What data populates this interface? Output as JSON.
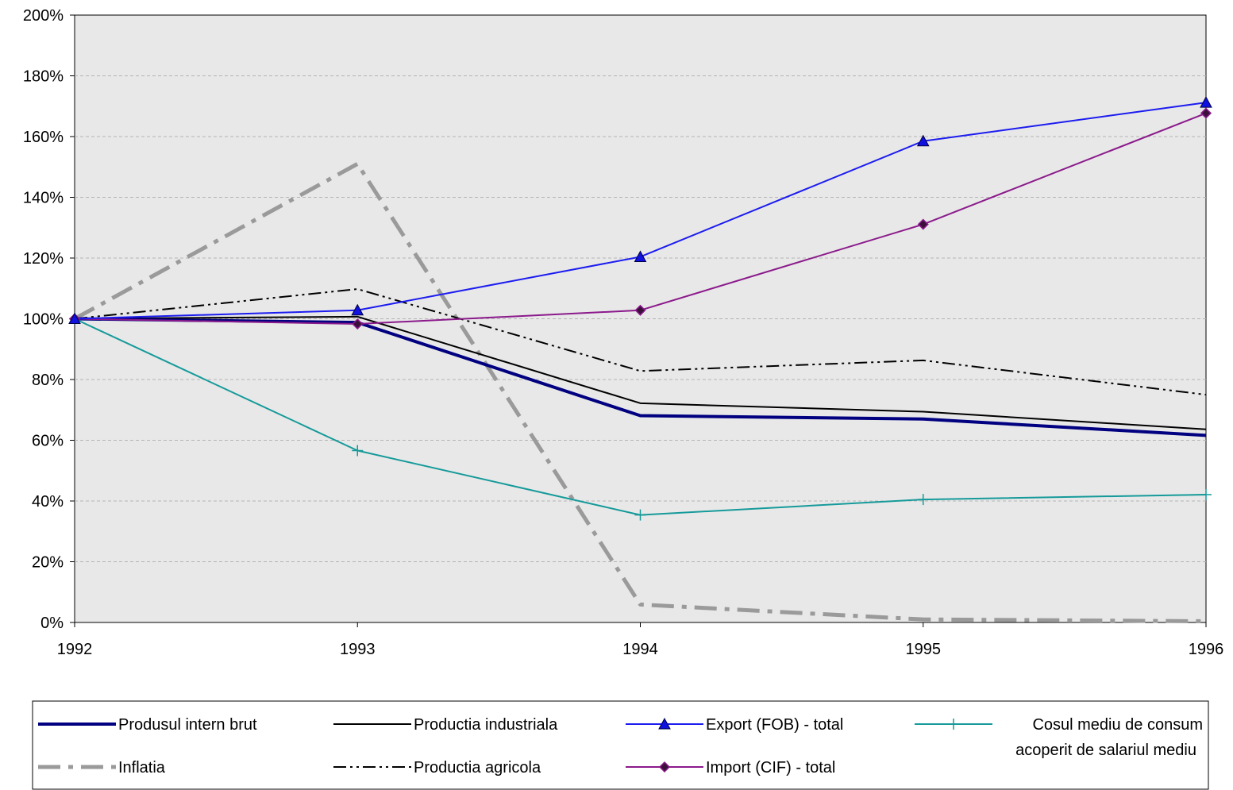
{
  "chart_data": {
    "type": "line",
    "title": "",
    "xlabel": "",
    "ylabel": "",
    "x": [
      "1992",
      "1993",
      "1994",
      "1995",
      "1996"
    ],
    "ylim": [
      0,
      200
    ],
    "y_ticks": [
      "0%",
      "20%",
      "40%",
      "60%",
      "80%",
      "100%",
      "120%",
      "140%",
      "160%",
      "180%",
      "200%"
    ],
    "grid": "horizontal dashed",
    "legend_position": "bottom",
    "series": [
      {
        "name": "Produsul intern brut",
        "values": [
          100,
          98.8,
          68.1,
          67,
          61.6
        ],
        "color": "#000080",
        "style": "solid-thick",
        "marker": "none"
      },
      {
        "name": "Productia industriala",
        "values": [
          100,
          100.7,
          72.2,
          69.4,
          63.6
        ],
        "color": "#000000",
        "style": "solid",
        "marker": "none"
      },
      {
        "name": "Export (FOB) - total",
        "values": [
          100,
          102.8,
          120.4,
          158.5,
          171.2
        ],
        "color": "#1c1cf0",
        "style": "solid",
        "marker": "triangle"
      },
      {
        "name": "Cosul mediu de consum",
        "name_line2": "acoperit de salariul mediu",
        "values": [
          100,
          56.6,
          35.4,
          40.5,
          42.1
        ],
        "color": "#169a9a",
        "style": "solid",
        "marker": "plus"
      },
      {
        "name": "Inflatia",
        "values": [
          100,
          151,
          5.9,
          1.0,
          0.4
        ],
        "color": "#9a9a9a",
        "style": "dash-dot-thick",
        "marker": "none"
      },
      {
        "name": "Productia agricola",
        "values": [
          100,
          109.8,
          82.8,
          86.3,
          75
        ],
        "color": "#000000",
        "style": "dash-dot-dot",
        "marker": "none"
      },
      {
        "name": "Import (CIF) - total",
        "values": [
          100,
          98.3,
          102.8,
          131.1,
          167.7
        ],
        "color": "#8b1a8b",
        "style": "solid",
        "marker": "diamond"
      }
    ]
  }
}
